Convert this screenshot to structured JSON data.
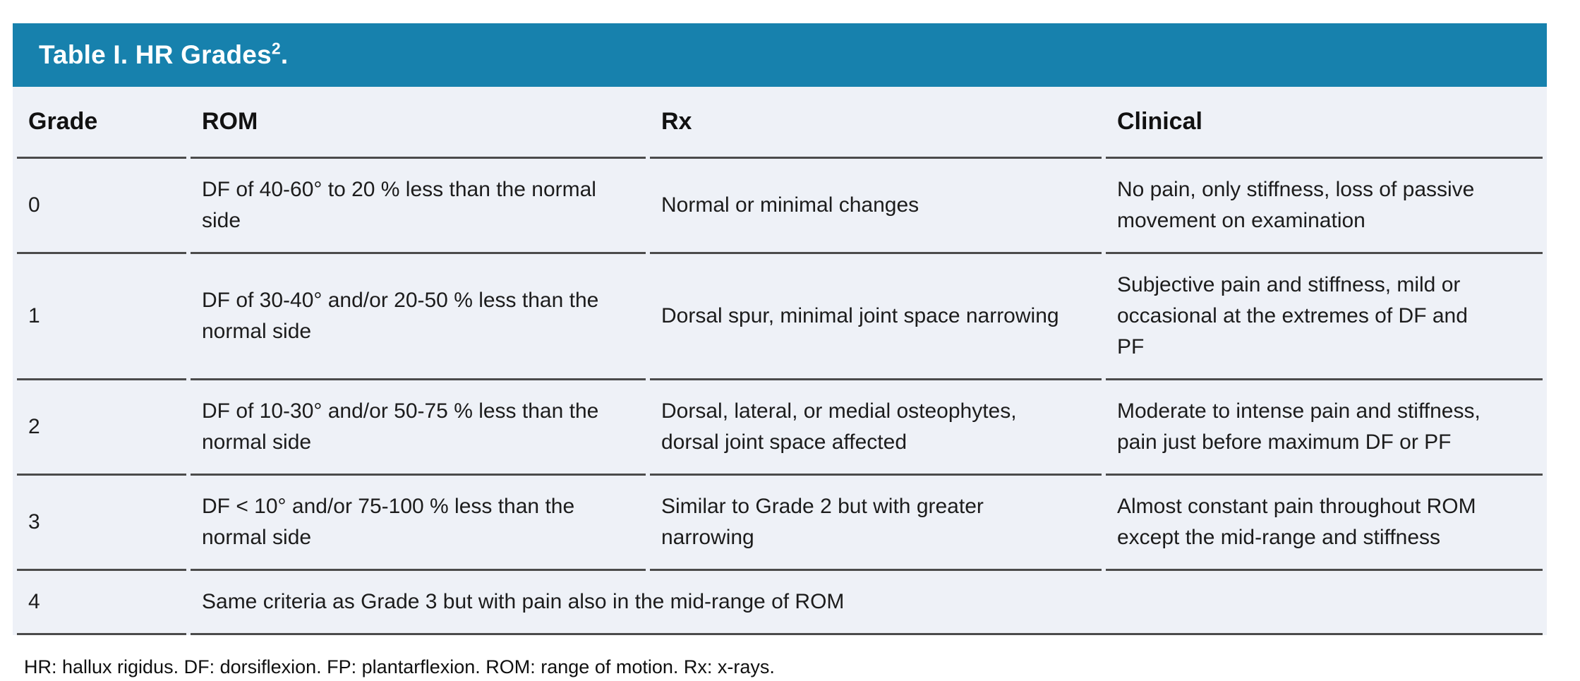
{
  "table": {
    "title": "Table I. HR Grades",
    "title_sup": "2",
    "title_period": ".",
    "columns": [
      "Grade",
      "ROM",
      "Rx",
      "Clinical"
    ],
    "rows": [
      {
        "grade": "0",
        "rom": "DF of 40-60° to 20 % less than the normal side",
        "rx": "Normal or minimal changes",
        "clinical": "No pain, only stiffness, loss of passive movement on examination"
      },
      {
        "grade": "1",
        "rom": "DF of 30-40° and/or 20-50 % less than the normal side",
        "rx": "Dorsal spur, minimal joint space narrowing",
        "clinical": "Subjective pain and stiffness, mild or occasional at the extremes of DF and PF"
      },
      {
        "grade": "2",
        "rom": "DF of 10-30° and/or 50-75 % less than the normal side",
        "rx": "Dorsal, lateral, or medial osteophytes, dorsal joint space affected",
        "clinical": "Moderate to intense pain and stiffness, pain just before maximum DF or PF"
      },
      {
        "grade": "3",
        "rom": "DF < 10° and/or 75-100 % less than the normal side",
        "rx": "Similar to Grade 2 but with greater narrowing",
        "clinical": "Almost constant pain throughout ROM except the mid-range and stiffness"
      },
      {
        "grade": "4",
        "span_text": "Same criteria as Grade 3 but with pain also in the mid-range of ROM"
      }
    ],
    "footnote": "HR: hallux rigidus. DF: dorsiflexion. FP: plantarflexion. ROM: range of motion. Rx: x-rays.",
    "colors": {
      "header_bg": "#1781ad",
      "body_bg": "#eef1f7",
      "divider": "#4b4b4b",
      "title_text": "#ffffff",
      "body_text": "#1c1c1c"
    }
  }
}
